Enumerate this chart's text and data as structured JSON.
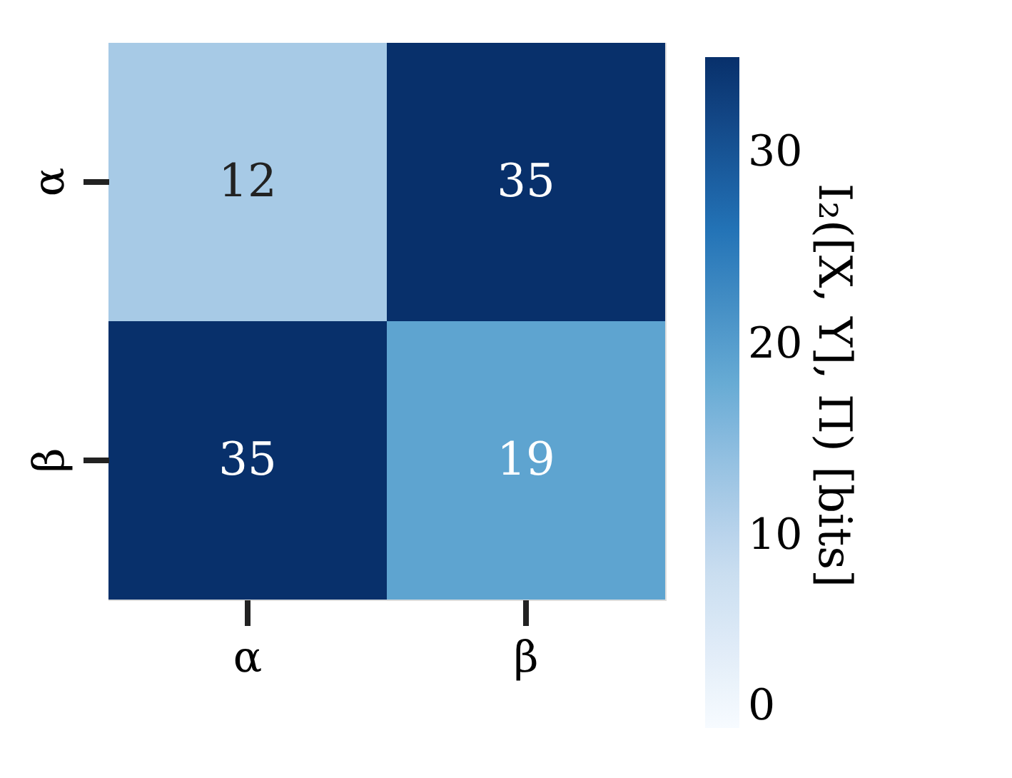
{
  "chart_data": {
    "type": "heatmap",
    "categories": [
      "α",
      "β"
    ],
    "y_categories": [
      "α",
      "β"
    ],
    "cells": [
      [
        12,
        35
      ],
      [
        35,
        19
      ]
    ],
    "data_labels": true,
    "clabel": "I₂([X, Y], Π) [bits]",
    "clim": [
      0,
      35
    ],
    "cticks": [
      0,
      10,
      20,
      30
    ]
  }
}
